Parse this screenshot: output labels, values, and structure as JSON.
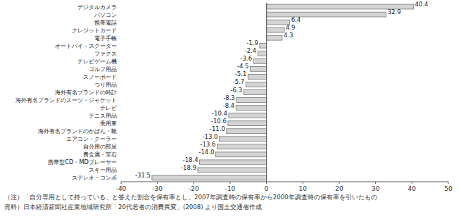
{
  "chart_data": {
    "type": "bar",
    "orientation": "horizontal",
    "categories": [
      "デジタルカメラ",
      "パソコン",
      "携帯電話",
      "クレジットカード",
      "電子手帳",
      "オートバイ・スクーター",
      "ファクス",
      "テレビゲーム機",
      "ゴルフ用品",
      "スノーボード",
      "つり用品",
      "海外有名ブランドの時計",
      "海外有名ブランドのスーツ・ジャケット",
      "テレビ",
      "テニス用品",
      "乗用車",
      "海外有名ブランドのかばん・靴",
      "エアコン・クーラー",
      "自分用の部屋",
      "貴金属・宝石",
      "携帯型CD・MDプレーヤー",
      "スキー用品",
      "ステレオ・コンボ"
    ],
    "values": [
      40.4,
      32.9,
      6.4,
      4.9,
      4.3,
      -1.9,
      -2.4,
      -3.6,
      -4.5,
      -5.1,
      -5.7,
      -6.3,
      -8.3,
      -8.4,
      -10.4,
      -10.6,
      -11.0,
      -13.0,
      -13.6,
      -14.0,
      -18.4,
      -18.9,
      -31.5
    ],
    "value_labels": [
      "40.4",
      "32.9",
      "6.4",
      "4.9",
      "4.3",
      "-1.9",
      "-2.4",
      "-3.6",
      "-4.5",
      "-5.1",
      "-5.7",
      "-6.3",
      "-8.3",
      "-8.4",
      "-10.4",
      "-10.6",
      "-11.0",
      "-13.0",
      "-13.6",
      "-14.0",
      "-18.4",
      "-18.9",
      "-31.5"
    ],
    "color": "#d4d4d4",
    "xlim": [
      -40,
      50
    ],
    "xticks": [
      -40,
      -30,
      -20,
      -10,
      0,
      10,
      20,
      30,
      40,
      50
    ],
    "grid": false,
    "data_labels": true,
    "annotations": [
      "（注）「自分専用として持っている」と答えた割合を保有率とし、2007年調査時の保有率から2000年調査時の保有率を引いたもの",
      "資料）日本経済新聞社産業地域研究所「20代若者の消費異変」(2008) より国土交通省作成"
    ]
  }
}
